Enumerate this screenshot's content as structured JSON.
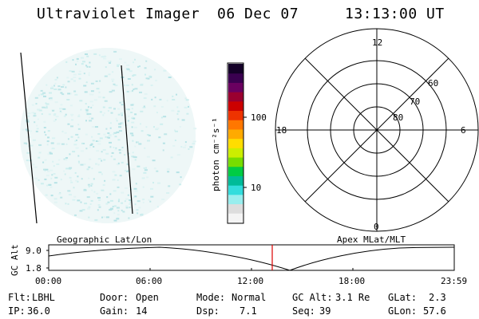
{
  "header": {
    "instrument": "Ultraviolet Imager",
    "date": "06 Dec 07",
    "time": "13:13:00 UT"
  },
  "colorbar": {
    "unit_label": "photon cm⁻²s⁻¹",
    "tick_100": "100",
    "tick_10": "10",
    "colors": [
      "#140028",
      "#3a0050",
      "#6a0060",
      "#9a0030",
      "#cc0000",
      "#ee3300",
      "#ff7700",
      "#ffaa00",
      "#ffdd00",
      "#ccee00",
      "#77dd00",
      "#00cc44",
      "#00bb99",
      "#33dddd",
      "#99eeee",
      "#dddddd",
      "#f4f4f4"
    ]
  },
  "polar": {
    "label_12": "12",
    "label_18": "18",
    "label_6": "6",
    "label_0": "0",
    "label_60": "60",
    "label_70": "70",
    "label_80": "80"
  },
  "timeline": {
    "left_title": "Geographic Lat/Lon",
    "right_title": "Apex MLat/MLT",
    "y_axis_label": "GC Alt",
    "y_tick_top": "9.0",
    "y_tick_bottom": "1.8",
    "x_ticks": [
      "00:00",
      "06:00",
      "12:00",
      "18:00",
      "23:59"
    ],
    "marker_color": "#dd0000"
  },
  "info": {
    "flt_label": "Flt:",
    "flt_value": "LBHL",
    "ip_label": "IP:",
    "ip_value": "36.0",
    "door_label": "Door:",
    "door_value": "Open",
    "gain_label": "Gain:",
    "gain_value": "14",
    "mode_label": "Mode:",
    "mode_value": "Normal",
    "dsp_label": "Dsp:",
    "dsp_value": "7.1",
    "gcalt_label": "GC Alt:",
    "gcalt_value": "3.1 Re",
    "seq_label": "Seq:",
    "seq_value": "39",
    "glat_label": "GLat:",
    "glat_value": "2.3",
    "glon_label": "GLon:",
    "glon_value": "57.6"
  }
}
